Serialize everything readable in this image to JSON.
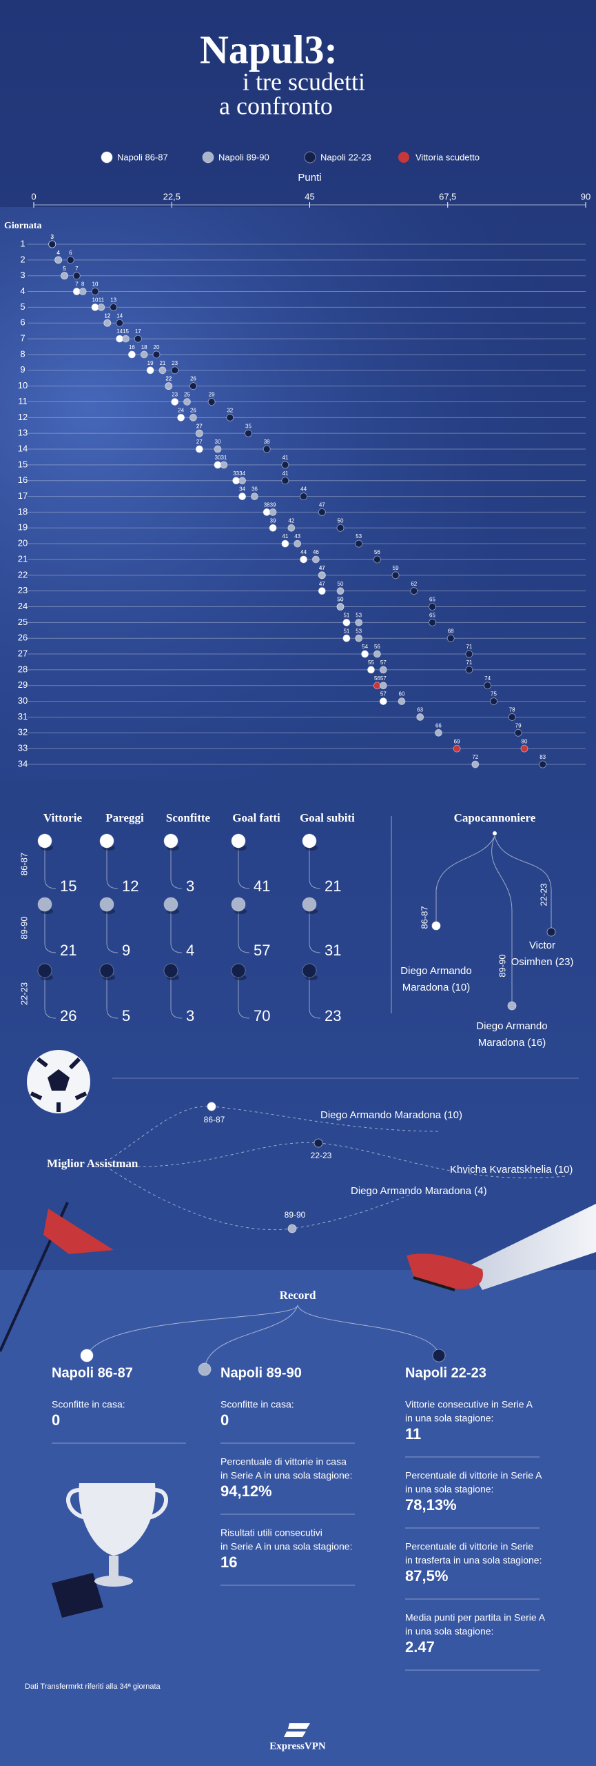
{
  "chart_data": {
    "type": "dot",
    "title": "Napul3:",
    "subtitle": [
      "i tre scudetti",
      "a confronto"
    ],
    "x_label": "Punti",
    "y_label": "Giornata",
    "categories": [
      1,
      2,
      3,
      4,
      5,
      6,
      7,
      8,
      9,
      10,
      11,
      12,
      13,
      14,
      15,
      16,
      17,
      18,
      19,
      20,
      21,
      22,
      23,
      24,
      25,
      26,
      27,
      28,
      29,
      30,
      31,
      32,
      33,
      34
    ],
    "xlim": [
      0,
      90
    ],
    "xticks": [
      0,
      {
        "value": 22.5,
        "label": "22,5"
      },
      45,
      {
        "value": 67.5,
        "label": "67,5"
      },
      90
    ],
    "highlight": {
      "name": "Vittoria scudetto",
      "color": "#c8373a"
    },
    "series": [
      {
        "name": "Napoli 86-87",
        "color": "#ffffff",
        "scudetto": 29,
        "values": [
          3,
          4,
          5,
          7,
          10,
          12,
          14,
          16,
          19,
          22,
          23,
          24,
          27,
          27,
          30,
          33,
          34,
          38,
          39,
          41,
          44,
          47,
          47,
          50,
          51,
          51,
          54,
          55,
          56,
          57,
          null,
          null,
          null,
          null
        ]
      },
      {
        "name": "Napoli 89-90",
        "color": "#aab4cb",
        "scudetto": 33,
        "values": [
          3,
          4,
          5,
          8,
          11,
          12,
          15,
          18,
          21,
          22,
          25,
          26,
          27,
          30,
          31,
          34,
          36,
          39,
          42,
          43,
          46,
          47,
          50,
          50,
          53,
          53,
          56,
          57,
          57,
          60,
          63,
          66,
          69,
          72
        ]
      },
      {
        "name": "Napoli 22-23",
        "color": "#13204a",
        "scudetto": 33,
        "values": [
          3,
          6,
          7,
          10,
          13,
          14,
          17,
          20,
          23,
          26,
          29,
          32,
          35,
          38,
          41,
          41,
          44,
          47,
          50,
          53,
          56,
          59,
          62,
          65,
          65,
          68,
          71,
          71,
          74,
          75,
          78,
          79,
          80,
          83
        ]
      }
    ]
  },
  "stats": {
    "headers": [
      "Vittorie",
      "Pareggi",
      "Sconfitte",
      "Goal fatti",
      "Goal subiti"
    ],
    "rows": [
      {
        "label": "86-87",
        "color": "#ffffff",
        "values": [
          15,
          12,
          3,
          41,
          21
        ]
      },
      {
        "label": "89-90",
        "color": "#aab4cb",
        "values": [
          21,
          9,
          4,
          57,
          31
        ]
      },
      {
        "label": "22-23",
        "color": "#13204a",
        "values": [
          26,
          5,
          3,
          70,
          23
        ]
      }
    ]
  },
  "top_scorer": {
    "title": "Capocannoniere",
    "entries": [
      {
        "season": "86-87",
        "color": "#ffffff",
        "name": [
          "Diego Armando",
          "Maradona (10)"
        ]
      },
      {
        "season": "89-90",
        "color": "#aab4cb",
        "name": [
          "Diego Armando",
          "Maradona (16)"
        ]
      },
      {
        "season": "22-23",
        "color": "#13204a",
        "name": [
          "Victor",
          "Osimhen (23)"
        ]
      }
    ]
  },
  "assists": {
    "title": "Miglior Assistman",
    "entries": [
      {
        "season": "86-87",
        "color": "#ffffff",
        "name": "Diego Armando Maradona (10)"
      },
      {
        "season": "22-23",
        "color": "#13204a",
        "name": "Khvicha Kvaratskhelia (10)"
      },
      {
        "season": "89-90",
        "color": "#aab4cb",
        "name": "Diego Armando Maradona (4)"
      }
    ]
  },
  "record": {
    "title": "Record",
    "teams": [
      {
        "name": "Napoli 86-87",
        "color": "#ffffff",
        "items": [
          {
            "label": [
              "Sconfitte in casa:"
            ],
            "value": 0
          }
        ]
      },
      {
        "name": "Napoli 89-90",
        "color": "#aab4cb",
        "items": [
          {
            "label": [
              "Sconfitte in casa:"
            ],
            "value": 0
          },
          {
            "label": [
              "Percentuale di vittorie in casa",
              "in Serie A in una sola stagione:"
            ],
            "value": "94,12%"
          },
          {
            "label": [
              "Risultati utili consecutivi",
              "in Serie A in una sola stagione:"
            ],
            "value": 16
          }
        ]
      },
      {
        "name": "Napoli 22-23",
        "color": "#13204a",
        "items": [
          {
            "label": [
              "Vittorie consecutive in Serie A",
              "in una sola stagione:"
            ],
            "value": 11
          },
          {
            "label": [
              "Percentuale di vittorie in Serie A",
              "in una sola stagione:"
            ],
            "value": "78,13%"
          },
          {
            "label": [
              "Percentuale di vittorie in Serie",
              "in trasferta in una sola stagione:"
            ],
            "value": "87,5%"
          },
          {
            "label": [
              "Media punti per partita in Serie A",
              "in una sola stagione:"
            ],
            "value": 2.47
          }
        ]
      }
    ]
  },
  "footer": "Dati Transfermrkt riferiti alla 34ª giornata",
  "logo": "ExpressVPN"
}
